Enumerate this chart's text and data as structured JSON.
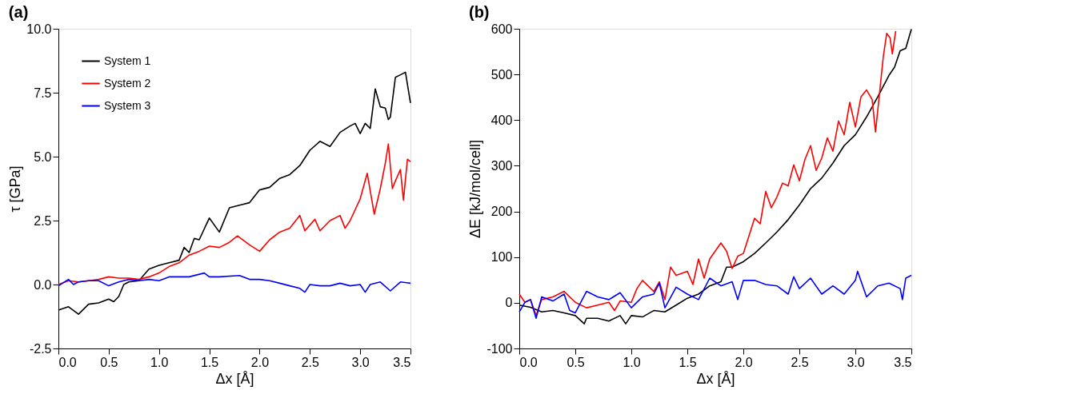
{
  "chart_data": [
    {
      "type": "line",
      "title": "(a)",
      "xlabel": "Δx [Å]",
      "ylabel": "τ [GPa]",
      "legend": "top left",
      "grid": false,
      "line_style": "solid",
      "marker": "none",
      "xlim": [
        0,
        3.5
      ],
      "xticks": [
        {
          "value": 0,
          "label": "0.0"
        },
        {
          "value": 0.5,
          "label": "0.5"
        },
        {
          "value": 1,
          "label": "1.0"
        },
        {
          "value": 1.5,
          "label": "1.5"
        },
        {
          "value": 2,
          "label": "2.0"
        },
        {
          "value": 2.5,
          "label": "2.5"
        },
        {
          "value": 3,
          "label": "3.0"
        },
        {
          "value": 3.5,
          "label": "3.5"
        }
      ],
      "ylim": [
        -2.5,
        10
      ],
      "yticks": [
        -2.5,
        {
          "value": 0,
          "label": "0.0"
        },
        2.5,
        {
          "value": 5,
          "label": "5.0"
        },
        7.5,
        {
          "value": 10,
          "label": "10.0"
        }
      ],
      "series": [
        {
          "name": "System 1",
          "color": "#000000",
          "x": [
            0,
            0.1,
            0.2,
            0.3,
            0.4,
            0.5,
            0.55,
            0.6,
            0.65,
            0.7,
            0.8,
            0.9,
            1.0,
            1.1,
            1.2,
            1.25,
            1.3,
            1.35,
            1.4,
            1.5,
            1.6,
            1.7,
            1.8,
            1.9,
            2.0,
            2.1,
            2.2,
            2.3,
            2.4,
            2.5,
            2.6,
            2.7,
            2.8,
            2.9,
            2.95,
            3.0,
            3.05,
            3.1,
            3.15,
            3.2,
            3.25,
            3.28,
            3.3,
            3.35,
            3.4,
            3.45,
            3.5
          ],
          "values": [
            -1.0,
            -0.87,
            -1.16,
            -0.77,
            -0.72,
            -0.57,
            -0.67,
            -0.47,
            0.0,
            0.1,
            0.15,
            0.6,
            0.75,
            0.85,
            0.95,
            1.45,
            1.25,
            1.8,
            1.75,
            2.6,
            2.05,
            3.0,
            3.1,
            3.2,
            3.7,
            3.8,
            4.15,
            4.3,
            4.65,
            5.25,
            5.6,
            5.4,
            5.95,
            6.2,
            6.3,
            5.9,
            6.3,
            6.1,
            7.65,
            6.95,
            6.9,
            6.45,
            6.55,
            8.1,
            8.2,
            8.3,
            7.1
          ]
        },
        {
          "name": "System 2",
          "color": "#ff0000",
          "x": [
            0,
            0.1,
            0.2,
            0.3,
            0.4,
            0.5,
            0.6,
            0.7,
            0.8,
            0.9,
            1.0,
            1.1,
            1.2,
            1.3,
            1.4,
            1.5,
            1.6,
            1.7,
            1.78,
            1.9,
            2.0,
            2.1,
            2.2,
            2.3,
            2.4,
            2.45,
            2.55,
            2.6,
            2.7,
            2.8,
            2.85,
            2.9,
            3.0,
            3.07,
            3.14,
            3.2,
            3.25,
            3.28,
            3.32,
            3.35,
            3.4,
            3.43,
            3.47,
            3.5
          ],
          "values": [
            0.0,
            0.15,
            0.1,
            0.15,
            0.2,
            0.3,
            0.25,
            0.25,
            0.2,
            0.3,
            0.45,
            0.7,
            0.85,
            1.15,
            1.3,
            1.5,
            1.45,
            1.65,
            1.9,
            1.55,
            1.3,
            1.75,
            2.05,
            2.2,
            2.7,
            2.1,
            2.55,
            2.1,
            2.5,
            2.7,
            2.2,
            2.5,
            3.35,
            4.35,
            2.75,
            3.75,
            4.75,
            5.5,
            3.75,
            4.05,
            4.5,
            3.3,
            4.9,
            4.8
          ]
        },
        {
          "name": "System 3",
          "color": "#0000ff",
          "x": [
            0,
            0.1,
            0.15,
            0.2,
            0.3,
            0.4,
            0.5,
            0.6,
            0.7,
            0.8,
            0.9,
            1.0,
            1.1,
            1.2,
            1.3,
            1.45,
            1.5,
            1.6,
            1.8,
            1.9,
            2.0,
            2.1,
            2.2,
            2.3,
            2.4,
            2.45,
            2.5,
            2.6,
            2.7,
            2.8,
            2.9,
            3.0,
            3.05,
            3.1,
            3.2,
            3.3,
            3.4,
            3.5
          ],
          "values": [
            -0.05,
            0.2,
            0.0,
            0.1,
            0.15,
            0.15,
            -0.05,
            0.1,
            0.2,
            0.15,
            0.2,
            0.15,
            0.3,
            0.3,
            0.3,
            0.45,
            0.3,
            0.3,
            0.35,
            0.2,
            0.2,
            0.15,
            0.05,
            -0.05,
            -0.15,
            -0.3,
            0.0,
            -0.05,
            -0.05,
            0.05,
            -0.05,
            0.0,
            -0.3,
            0.0,
            0.1,
            -0.25,
            0.1,
            0.05
          ]
        }
      ]
    },
    {
      "type": "line",
      "title": "(b)",
      "xlabel": "Δx [Å]",
      "ylabel": "ΔE [kJ/mol/cell]",
      "legend": "top left",
      "grid": false,
      "line_style": "solid",
      "marker": "none",
      "xlim": [
        0,
        3.5
      ],
      "xticks": [
        {
          "value": 0,
          "label": "0.0"
        },
        {
          "value": 0.5,
          "label": "0.5"
        },
        {
          "value": 1,
          "label": "1.0"
        },
        {
          "value": 1.5,
          "label": "1.5"
        },
        {
          "value": 2,
          "label": "2.0"
        },
        {
          "value": 2.5,
          "label": "2.5"
        },
        {
          "value": 3,
          "label": "3.0"
        },
        {
          "value": 3.5,
          "label": "3.5"
        }
      ],
      "ylim": [
        -100,
        600
      ],
      "yticks": [
        -100,
        0,
        100,
        200,
        300,
        400,
        500,
        600
      ],
      "series": [
        {
          "name": "System 1",
          "color": "#000000",
          "x": [
            0,
            0.1,
            0.2,
            0.3,
            0.4,
            0.5,
            0.58,
            0.6,
            0.7,
            0.8,
            0.9,
            0.95,
            1.0,
            1.1,
            1.2,
            1.3,
            1.4,
            1.5,
            1.6,
            1.7,
            1.8,
            1.85,
            1.9,
            2.0,
            2.1,
            2.2,
            2.3,
            2.4,
            2.5,
            2.6,
            2.7,
            2.8,
            2.9,
            3.0,
            3.1,
            3.2,
            3.3,
            3.35,
            3.4,
            3.45,
            3.5
          ],
          "values": [
            -5,
            -10,
            -20,
            -17,
            -22,
            -28,
            -46,
            -34,
            -34,
            -40,
            -28,
            -46,
            -28,
            -31,
            -17,
            -20,
            -5,
            10,
            19,
            37,
            46,
            78,
            78,
            90,
            108,
            131,
            155,
            182,
            214,
            250,
            273,
            306,
            344,
            368,
            407,
            451,
            498,
            516,
            552,
            557,
            599
          ]
        },
        {
          "name": "System 2",
          "color": "#ff0000",
          "x": [
            0,
            0.05,
            0.1,
            0.15,
            0.2,
            0.3,
            0.4,
            0.5,
            0.6,
            0.7,
            0.8,
            0.85,
            0.9,
            1.0,
            1.05,
            1.1,
            1.2,
            1.25,
            1.3,
            1.35,
            1.4,
            1.5,
            1.55,
            1.6,
            1.65,
            1.7,
            1.8,
            1.85,
            1.9,
            1.95,
            2.0,
            2.1,
            2.15,
            2.2,
            2.25,
            2.3,
            2.35,
            2.4,
            2.45,
            2.5,
            2.55,
            2.6,
            2.65,
            2.7,
            2.75,
            2.8,
            2.85,
            2.9,
            2.95,
            3.0,
            3.05,
            3.1,
            3.15,
            3.18,
            3.25,
            3.28,
            3.31,
            3.33,
            3.36
          ],
          "values": [
            19,
            1,
            7,
            -28,
            7,
            13,
            25,
            1,
            -11,
            -5,
            1,
            -17,
            4,
            1,
            31,
            49,
            25,
            46,
            7,
            78,
            60,
            69,
            40,
            96,
            54,
            96,
            131,
            113,
            75,
            102,
            108,
            185,
            173,
            244,
            208,
            232,
            262,
            256,
            302,
            267,
            314,
            344,
            290,
            317,
            361,
            332,
            398,
            368,
            439,
            385,
            451,
            466,
            445,
            374,
            540,
            590,
            580,
            545,
            595
          ]
        },
        {
          "name": "System 3",
          "color": "#0000ff",
          "x": [
            0,
            0.05,
            0.1,
            0.15,
            0.2,
            0.3,
            0.4,
            0.45,
            0.5,
            0.6,
            0.7,
            0.8,
            0.9,
            1.0,
            1.1,
            1.2,
            1.25,
            1.3,
            1.4,
            1.5,
            1.6,
            1.7,
            1.8,
            1.9,
            1.95,
            2.0,
            2.1,
            2.2,
            2.3,
            2.4,
            2.45,
            2.5,
            2.6,
            2.7,
            2.8,
            2.9,
            3.0,
            3.02,
            3.1,
            3.2,
            3.3,
            3.4,
            3.42,
            3.45,
            3.5
          ],
          "values": [
            -20,
            1,
            7,
            -34,
            13,
            4,
            19,
            -17,
            -22,
            25,
            13,
            7,
            22,
            -11,
            13,
            19,
            43,
            -11,
            34,
            19,
            7,
            54,
            37,
            46,
            7,
            49,
            49,
            40,
            37,
            19,
            57,
            31,
            54,
            19,
            37,
            19,
            49,
            69,
            13,
            37,
            43,
            31,
            7,
            54,
            60
          ]
        }
      ]
    }
  ]
}
